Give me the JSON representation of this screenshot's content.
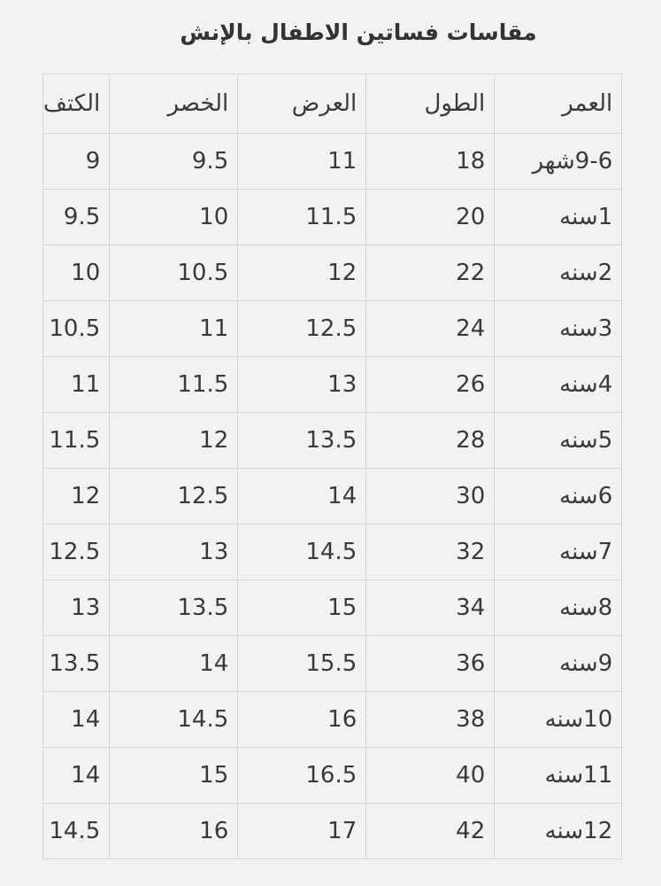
{
  "title": "مقاسات فساتين الاطفال بالإنش",
  "headers": [
    "العمر",
    "الطول",
    "العرض",
    "الخصر",
    "الكتف"
  ],
  "rows": [
    [
      "9-6شهر",
      "18",
      "11",
      "9.5",
      "9"
    ],
    [
      "1سنه",
      "20",
      "11.5",
      "10",
      "9.5"
    ],
    [
      "2سنه",
      "22",
      "12",
      "10.5",
      "10"
    ],
    [
      "3سنه",
      "24",
      "12.5",
      "11",
      "10.5"
    ],
    [
      "4سنه",
      "26",
      "13",
      "11.5",
      "11"
    ],
    [
      "5سنه",
      "28",
      "13.5",
      "12",
      "11.5"
    ],
    [
      "6سنه",
      "30",
      "14",
      "12.5",
      "12"
    ],
    [
      "7سنه",
      "32",
      "14.5",
      "13",
      "12.5"
    ],
    [
      "8سنه",
      "34",
      "15",
      "13.5",
      "13"
    ],
    [
      "9سنه",
      "36",
      "15.5",
      "14",
      "13.5"
    ],
    [
      "10سنه",
      "38",
      "16",
      "14.5",
      "14"
    ],
    [
      "11سنه",
      "40",
      "16.5",
      "15",
      "14"
    ],
    [
      "12سنه",
      "42",
      "17",
      "16",
      "14.5"
    ]
  ]
}
